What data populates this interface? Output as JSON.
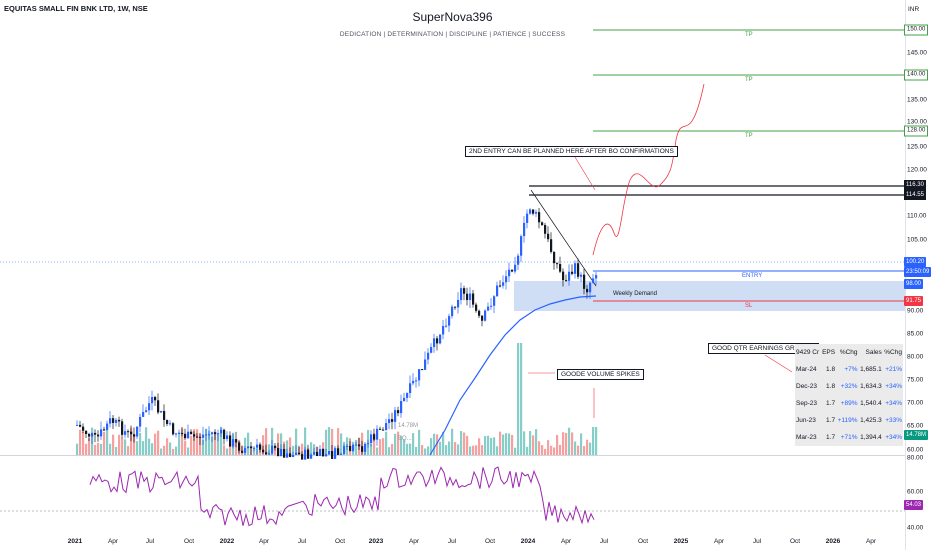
{
  "header": {
    "symbol": "EQUITAS SMALL FIN BNK LTD, 1W, NSE",
    "title": "SuperNova396",
    "subtitle": "DEDICATION | DETERMINATION | DISCIPLINE | PATIENCE | SUCCESS",
    "currency": "INR"
  },
  "price_axis": {
    "ticks": [
      "145.00",
      "135.00",
      "130.00",
      "125.00",
      "120.00",
      "110.00",
      "105.00",
      "90.00",
      "85.00",
      "80.00",
      "75.00",
      "70.00",
      "65.00",
      "60.00"
    ],
    "rsi_ticks": [
      "80.00",
      "60.00",
      "40.00"
    ]
  },
  "levels": {
    "tp1": "150.00",
    "tp2": "140.00",
    "tp3": "128.00",
    "tp_label": "TP",
    "high1": "116.30",
    "high2": "114.55",
    "last_price": "100.20",
    "countdown": "23:50:09",
    "entry": "98.00",
    "entry_label": "ENTRY",
    "sl": "91.75",
    "sl_label": "SL",
    "demand_label": "Weekly Demand",
    "volume": "14.78M",
    "rsi": "54.03"
  },
  "annotations": {
    "entry_note": "2ND ENTRY CAN BE PLANNED HERE AFTER BO CONFIRMATIONS",
    "volume_note": "GOODE VOLUME SPIKES",
    "earnings_note": "GOOD QTR EARNINGS GROWTH"
  },
  "earnings_table": {
    "headers": [
      "9429 Cr",
      "EPS",
      "%Chg",
      "Sales",
      "%Chg"
    ],
    "rows": [
      [
        "Mar-24",
        "1.8",
        "+7%",
        "1,685.1",
        "+21%"
      ],
      [
        "Dec-23",
        "1.8",
        "+32%",
        "1,634.3",
        "+34%"
      ],
      [
        "Sep-23",
        "1.7",
        "+89%",
        "1,540.4",
        "+34%"
      ],
      [
        "Jun-23",
        "1.7",
        "+119%",
        "1,425.3",
        "+33%"
      ],
      [
        "Mar-23",
        "1.7",
        "+71%",
        "1,394.4",
        "+34%"
      ]
    ]
  },
  "x_axis": {
    "ticks": [
      "2021",
      "Apr",
      "Jul",
      "Oct",
      "2022",
      "Apr",
      "Jul",
      "Oct",
      "2023",
      "Apr",
      "Jul",
      "Oct",
      "2024",
      "Apr",
      "Jul",
      "Oct",
      "2025",
      "Apr",
      "Jul",
      "Oct",
      "2026",
      "Apr"
    ]
  },
  "volume_labels": {
    "a": "14.78M",
    "b": "EQ..."
  },
  "colors": {
    "up": "#089981",
    "down": "#131722",
    "bull_candle": "#2962ff",
    "ma_line": "#2962ff",
    "rsi_line": "#9c27b0",
    "tp_line": "#43a047",
    "sl_line": "#f23645",
    "demand_zone": "#bbd0f0",
    "projection": "#f23645"
  }
}
